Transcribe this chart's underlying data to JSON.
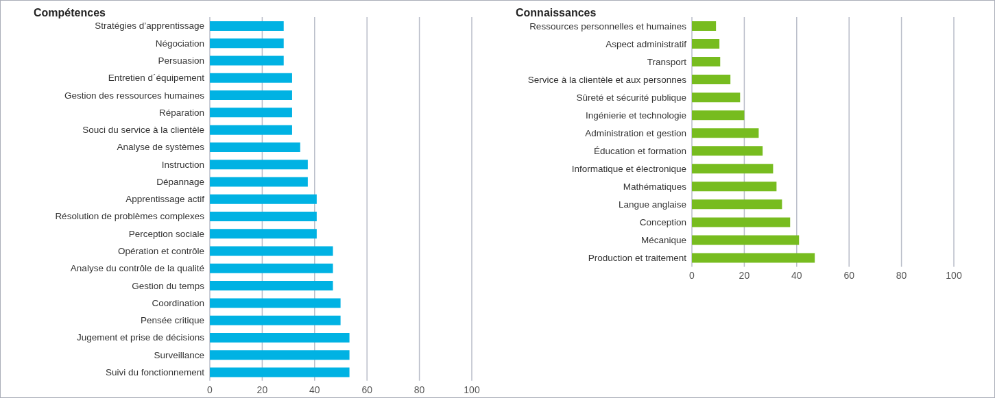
{
  "chart_data": [
    {
      "type": "bar",
      "orientation": "horizontal",
      "title": "Compétences",
      "categories": [
        "Stratégies d’apprentissage",
        "Négociation",
        "Persuasion",
        "Entretien d´équipement",
        "Gestion des ressources humaines",
        "Réparation",
        "Souci du service à la clientèle",
        "Analyse de systèmes",
        "Instruction",
        "Dépannage",
        "Apprentissage actif",
        "Résolution de problèmes complexes",
        "Perception sociale",
        "Opération et contrôle",
        "Analyse du contrôle de la qualité",
        "Gestion du temps",
        "Coordination",
        "Pensée critique",
        "Jugement et prise de décisions",
        "Surveillance",
        "Suivi du fonctionnement"
      ],
      "values": [
        28.2,
        28.2,
        28.2,
        31.4,
        31.4,
        31.4,
        31.4,
        34.5,
        37.4,
        37.4,
        40.8,
        40.8,
        40.8,
        47.0,
        47.0,
        47.0,
        49.9,
        49.9,
        53.3,
        53.3,
        53.3
      ],
      "color": "#00b2e3",
      "xlim": [
        0,
        100
      ],
      "xticks": [
        0,
        20,
        40,
        60,
        80,
        100
      ],
      "grid": "x"
    },
    {
      "type": "bar",
      "orientation": "horizontal",
      "title": "Connaissances",
      "categories": [
        "Ressources personnelles et humaines",
        "Aspect administratif",
        "Transport",
        "Service à la clientèle et aux personnes",
        "Sûreté et sécurité publique",
        "Ingénierie et technologie",
        "Administration et gestion",
        "Éducation et formation",
        "Informatique et électronique",
        "Mathématiques",
        "Langue anglaise",
        "Conception",
        "Mécanique",
        "Production et traitement"
      ],
      "values": [
        9.2,
        10.5,
        10.8,
        14.7,
        18.4,
        20.0,
        25.5,
        27.0,
        31.0,
        32.3,
        34.4,
        37.5,
        40.9,
        46.9
      ],
      "color": "#77bc1f",
      "xlim": [
        0,
        100
      ],
      "xticks": [
        0,
        20,
        40,
        60,
        80,
        100
      ],
      "grid": "x"
    }
  ]
}
